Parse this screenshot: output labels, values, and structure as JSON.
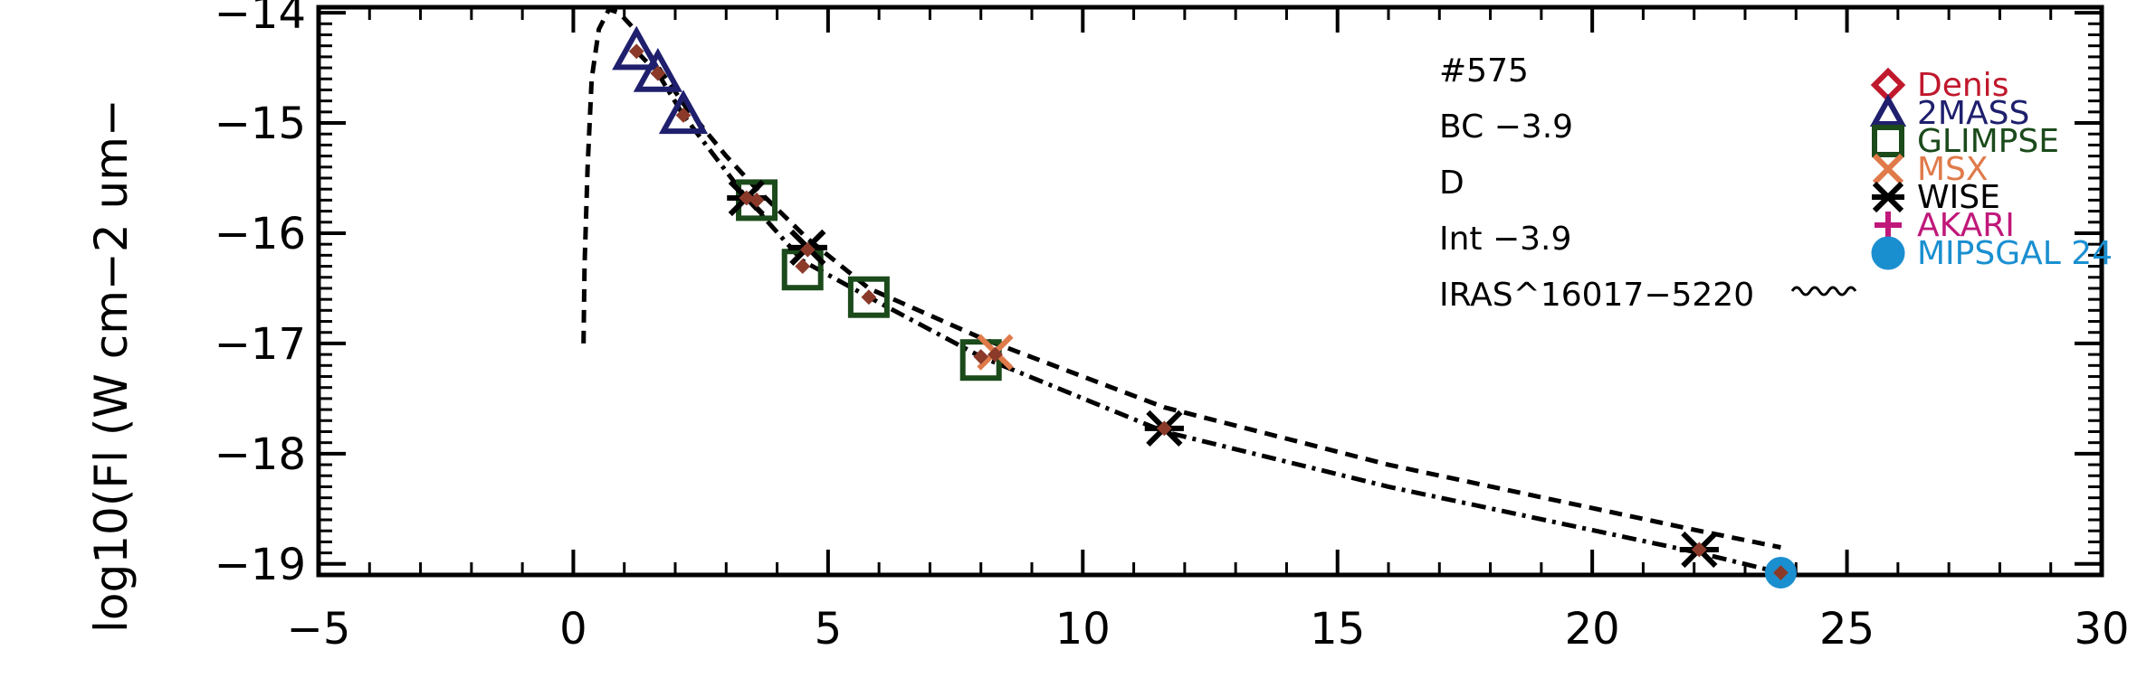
{
  "chart_data": {
    "type": "scatter",
    "title": "",
    "xlabel": "",
    "ylabel": "log10(Fl (W cm−2 um−",
    "xlim": [
      -5,
      30
    ],
    "ylim": [
      -19.1,
      -13.95
    ],
    "x_ticks": [
      -5,
      0,
      5,
      10,
      15,
      20,
      25,
      30
    ],
    "x_tick_labels": [
      "−5",
      "0",
      "5",
      "10",
      "15",
      "20",
      "25",
      "30"
    ],
    "y_ticks": [
      -14,
      -15,
      -16,
      -17,
      -18,
      -19
    ],
    "y_tick_labels": [
      "−14",
      "−15",
      "−16",
      "−17",
      "−18",
      "−19"
    ],
    "grid": false,
    "annotations": [
      "#575",
      "BC −3.9",
      "D",
      "Int −3.9",
      "IRAS^16017−5220"
    ],
    "legend": {
      "placement": "top-right",
      "entries": [
        {
          "label": "Denis",
          "marker": "diamond",
          "color": "#c0182c"
        },
        {
          "label": "2MASS",
          "marker": "triangle",
          "color": "#1f1f6e"
        },
        {
          "label": "GLIMPSE",
          "marker": "square",
          "color": "#1b4a1b"
        },
        {
          "label": "MSX",
          "marker": "x",
          "color": "#e07a4a"
        },
        {
          "label": "WISE",
          "marker": "asterisk",
          "color": "#000000"
        },
        {
          "label": "AKARI",
          "marker": "plus",
          "color": "#c0187a"
        },
        {
          "label": "MIPSGAL 24",
          "marker": "circle",
          "color": "#1a8fd0"
        }
      ]
    },
    "series": [
      {
        "name": "2MASS",
        "marker": "triangle",
        "color": "#1f1f6e",
        "points": [
          [
            1.24,
            -14.35
          ],
          [
            1.66,
            -14.55
          ],
          [
            2.16,
            -14.93
          ]
        ]
      },
      {
        "name": "GLIMPSE",
        "marker": "square",
        "color": "#1b4a1b",
        "points": [
          [
            3.6,
            -15.7
          ],
          [
            4.5,
            -16.33
          ],
          [
            5.8,
            -16.58
          ],
          [
            8.0,
            -17.15
          ]
        ]
      },
      {
        "name": "MSX",
        "marker": "x",
        "color": "#e07a4a",
        "points": [
          [
            8.28,
            -17.08
          ]
        ]
      },
      {
        "name": "WISE",
        "marker": "asterisk",
        "color": "#000000",
        "points": [
          [
            3.4,
            -15.68
          ],
          [
            4.6,
            -16.13
          ],
          [
            11.6,
            -17.77
          ],
          [
            22.1,
            -18.87
          ]
        ]
      },
      {
        "name": "MIPSGAL 24",
        "marker": "circle",
        "color": "#1a8fd0",
        "points": [
          [
            23.7,
            -19.08
          ]
        ]
      },
      {
        "name": "",
        "marker": "small-diamond",
        "color": "#8b3a2a",
        "points": [
          [
            1.24,
            -14.35
          ],
          [
            1.66,
            -14.55
          ],
          [
            2.16,
            -14.93
          ],
          [
            3.4,
            -15.68
          ],
          [
            3.6,
            -15.7
          ],
          [
            4.5,
            -16.3
          ],
          [
            4.6,
            -16.15
          ],
          [
            5.8,
            -16.58
          ],
          [
            8.0,
            -17.12
          ],
          [
            8.28,
            -17.1
          ],
          [
            11.6,
            -17.77
          ],
          [
            22.1,
            -18.87
          ],
          [
            23.7,
            -19.08
          ]
        ]
      }
    ],
    "curves": [
      {
        "style": "dashed",
        "color": "#000000",
        "points": [
          [
            0.2,
            -17.0
          ],
          [
            0.22,
            -16.3
          ],
          [
            0.28,
            -15.4
          ],
          [
            0.36,
            -14.6
          ],
          [
            0.5,
            -14.15
          ],
          [
            0.7,
            -13.97
          ],
          [
            0.9,
            -14.0
          ],
          [
            1.2,
            -14.15
          ],
          [
            1.6,
            -14.45
          ],
          [
            2.2,
            -14.85
          ],
          [
            3.0,
            -15.3
          ],
          [
            3.6,
            -15.6
          ],
          [
            4.6,
            -16.05
          ],
          [
            5.8,
            -16.5
          ],
          [
            8.0,
            -16.95
          ],
          [
            11.6,
            -17.58
          ],
          [
            16.0,
            -18.1
          ],
          [
            22.1,
            -18.7
          ],
          [
            23.7,
            -18.85
          ]
        ]
      },
      {
        "style": "dashdot",
        "color": "#000000",
        "points": [
          [
            1.24,
            -14.35
          ],
          [
            1.66,
            -14.55
          ],
          [
            2.16,
            -14.93
          ],
          [
            3.4,
            -15.68
          ],
          [
            4.5,
            -16.25
          ],
          [
            5.8,
            -16.58
          ],
          [
            8.0,
            -17.12
          ],
          [
            11.6,
            -17.8
          ],
          [
            16.0,
            -18.3
          ],
          [
            22.1,
            -18.9
          ],
          [
            23.7,
            -19.08
          ]
        ]
      }
    ]
  }
}
